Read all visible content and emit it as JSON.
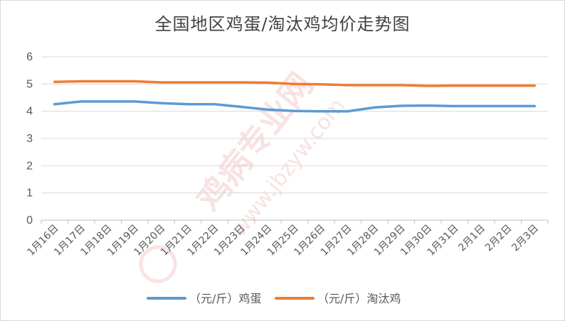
{
  "title": "全国地区鸡蛋/淘汰鸡均价走势图",
  "watermark": {
    "brand": "鸡病专业网",
    "url": "www.jbzyw.com",
    "color": "#f4cccc"
  },
  "colors": {
    "egg": "#5b9bd5",
    "hen": "#ed7d31",
    "grid": "#d9d9d9",
    "axis": "#bfbfbf"
  },
  "chart_data": {
    "type": "line",
    "title": "全国地区鸡蛋/淘汰鸡均价走势图",
    "xlabel": "",
    "ylabel": "",
    "ylim": [
      0,
      6
    ],
    "yticks": [
      0,
      1,
      2,
      3,
      4,
      5,
      6
    ],
    "grid": true,
    "legend_position": "bottom",
    "categories": [
      "1月16日",
      "1月17日",
      "1月18日",
      "1月19日",
      "1月20日",
      "1月21日",
      "1月22日",
      "1月23日",
      "1月24日",
      "1月25日",
      "1月26日",
      "1月27日",
      "1月28日",
      "1月29日",
      "1月30日",
      "1月31日",
      "2月1日",
      "2月2日",
      "2月3日"
    ],
    "series": [
      {
        "name": "（元/斤）鸡蛋",
        "color": "#5b9bd5",
        "values": [
          4.26,
          4.36,
          4.36,
          4.36,
          4.3,
          4.26,
          4.26,
          4.16,
          4.06,
          4.01,
          4.0,
          4.0,
          4.14,
          4.2,
          4.21,
          4.19,
          4.19,
          4.19,
          4.19
        ]
      },
      {
        "name": "（元/斤）淘汰鸡",
        "color": "#ed7d31",
        "values": [
          5.08,
          5.1,
          5.1,
          5.1,
          5.06,
          5.06,
          5.06,
          5.06,
          5.05,
          5.0,
          4.99,
          4.96,
          4.96,
          4.96,
          4.93,
          4.94,
          4.94,
          4.94,
          4.94
        ]
      }
    ]
  }
}
